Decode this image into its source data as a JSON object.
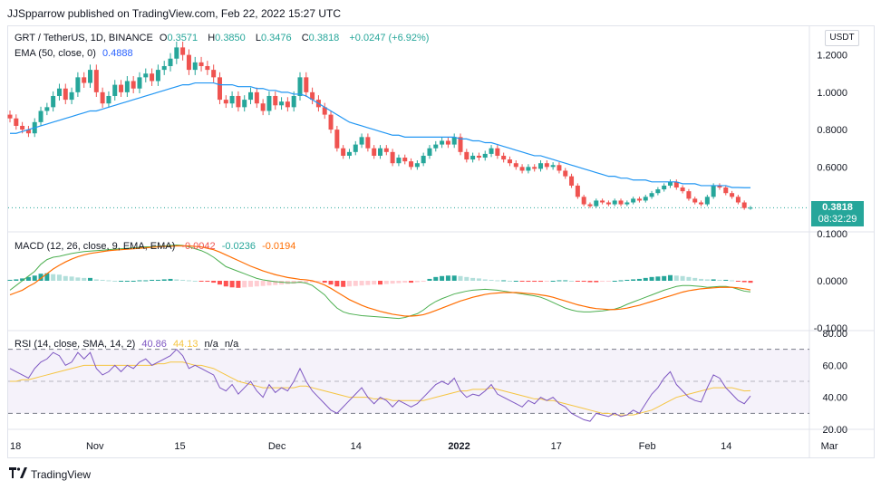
{
  "header": {
    "publisher_text": "JJSpparrow published on TradingView.com, Feb 22, 2022 15:27 UTC"
  },
  "legend": {
    "symbol": "GRT / TetherUS, 1D, BINANCE",
    "open_label": "O",
    "open": "0.3571",
    "high_label": "H",
    "high": "0.3850",
    "low_label": "L",
    "low": "0.3476",
    "close_label": "C",
    "close": "0.3818",
    "change": "+0.0247 (+6.92%)",
    "ema_label": "EMA (50, close, 0)",
    "ema_value": "0.4888",
    "macd_label": "MACD (12, 26, close, 9, EMA, EMA)",
    "macd_hist": "-0.0042",
    "macd_line": "-0.0236",
    "macd_signal": "-0.0194",
    "rsi_label": "RSI (14, close, SMA, 14, 2)",
    "rsi_value": "40.86",
    "rsi_ma": "44.13",
    "rsi_na1": "n/a",
    "rsi_na2": "n/a"
  },
  "currency": "USDT",
  "price_tag": {
    "price": "0.3818",
    "countdown": "08:32:29"
  },
  "logo_text": "TradingView",
  "colors": {
    "up": "#26a69a",
    "down": "#ef5350",
    "ema": "#2196f3",
    "macd": "#4caf50",
    "signal": "#ff6d00",
    "rsi": "#7e57c2",
    "rsi_ma": "#f5c542"
  },
  "chart_data": [
    {
      "type": "candlestick",
      "title": "GRT / TetherUS, 1D, BINANCE",
      "price_axis_ticks": [
        "1.2000",
        "1.0000",
        "0.8000",
        "0.6000"
      ],
      "x_ticks": [
        "18",
        "Nov",
        "15",
        "Dec",
        "14",
        "2022",
        "17",
        "Feb",
        "14",
        "Mar"
      ],
      "x_tick_days": [
        0,
        14,
        28,
        44,
        57,
        74,
        90,
        105,
        118,
        135
      ],
      "ylim": [
        0.33,
        1.3
      ],
      "series": [
        {
          "name": "EMA (50, close, 0)",
          "kind": "line"
        }
      ],
      "closes": [
        0.86,
        0.82,
        0.8,
        0.78,
        0.84,
        0.9,
        0.92,
        0.98,
        1.02,
        0.96,
        1.0,
        1.08,
        1.05,
        1.12,
        1.0,
        0.94,
        0.98,
        1.04,
        1.0,
        1.06,
        1.02,
        1.08,
        1.1,
        1.06,
        1.12,
        1.14,
        1.18,
        1.24,
        1.2,
        1.12,
        1.16,
        1.14,
        1.12,
        1.08,
        0.96,
        0.94,
        0.98,
        0.92,
        0.96,
        1.0,
        0.94,
        0.9,
        0.98,
        0.93,
        0.95,
        0.92,
        0.98,
        1.08,
        1.0,
        0.96,
        0.92,
        0.88,
        0.8,
        0.7,
        0.66,
        0.68,
        0.72,
        0.76,
        0.7,
        0.66,
        0.7,
        0.68,
        0.62,
        0.65,
        0.63,
        0.6,
        0.62,
        0.66,
        0.7,
        0.72,
        0.74,
        0.72,
        0.76,
        0.68,
        0.64,
        0.66,
        0.65,
        0.67,
        0.7,
        0.66,
        0.64,
        0.62,
        0.6,
        0.58,
        0.6,
        0.59,
        0.62,
        0.6,
        0.61,
        0.58,
        0.55,
        0.5,
        0.44,
        0.4,
        0.39,
        0.42,
        0.41,
        0.4,
        0.42,
        0.4,
        0.41,
        0.43,
        0.42,
        0.44,
        0.46,
        0.48,
        0.5,
        0.52,
        0.49,
        0.47,
        0.43,
        0.41,
        0.4,
        0.44,
        0.5,
        0.49,
        0.46,
        0.44,
        0.41,
        0.38,
        0.3818
      ],
      "ema": [
        0.78,
        0.78,
        0.79,
        0.8,
        0.81,
        0.82,
        0.83,
        0.84,
        0.85,
        0.86,
        0.87,
        0.88,
        0.89,
        0.9,
        0.9,
        0.91,
        0.92,
        0.93,
        0.94,
        0.95,
        0.96,
        0.97,
        0.98,
        0.99,
        1.0,
        1.01,
        1.02,
        1.03,
        1.04,
        1.04,
        1.05,
        1.05,
        1.05,
        1.05,
        1.04,
        1.04,
        1.04,
        1.03,
        1.03,
        1.03,
        1.02,
        1.02,
        1.01,
        1.01,
        1.0,
        1.0,
        0.99,
        0.99,
        0.98,
        0.96,
        0.94,
        0.92,
        0.9,
        0.88,
        0.86,
        0.84,
        0.83,
        0.82,
        0.81,
        0.8,
        0.79,
        0.78,
        0.77,
        0.77,
        0.76,
        0.76,
        0.76,
        0.76,
        0.76,
        0.76,
        0.76,
        0.76,
        0.76,
        0.75,
        0.75,
        0.74,
        0.74,
        0.73,
        0.73,
        0.72,
        0.71,
        0.7,
        0.69,
        0.68,
        0.67,
        0.66,
        0.66,
        0.65,
        0.64,
        0.63,
        0.62,
        0.61,
        0.6,
        0.59,
        0.58,
        0.57,
        0.56,
        0.55,
        0.55,
        0.54,
        0.54,
        0.53,
        0.53,
        0.53,
        0.52,
        0.52,
        0.52,
        0.52,
        0.52,
        0.51,
        0.51,
        0.51,
        0.5,
        0.5,
        0.5,
        0.5,
        0.5,
        0.49,
        0.49,
        0.489,
        0.4888
      ]
    },
    {
      "type": "bar",
      "title": "MACD (12, 26, close, 9, EMA, EMA)",
      "ylim": [
        -0.1,
        0.1
      ],
      "axis_ticks": [
        "0.1000",
        "0.0000",
        "-0.1000"
      ],
      "series": [
        {
          "name": "MACD"
        },
        {
          "name": "Signal"
        },
        {
          "name": "Histogram"
        }
      ],
      "hist": [
        0.002,
        0.003,
        0.005,
        0.008,
        0.011,
        0.015,
        0.016,
        0.014,
        0.013,
        0.01,
        0.009,
        0.007,
        0.006,
        0.006,
        0.003,
        0.002,
        0.001,
        0.0,
        0.0,
        0.0,
        0.0,
        0.001,
        0.001,
        0.002,
        0.002,
        0.003,
        0.004,
        0.003,
        0.002,
        0.001,
        0.0,
        -0.001,
        -0.002,
        -0.004,
        -0.008,
        -0.012,
        -0.014,
        -0.015,
        -0.014,
        -0.013,
        -0.012,
        -0.011,
        -0.01,
        -0.009,
        -0.008,
        -0.007,
        -0.006,
        -0.005,
        -0.004,
        -0.003,
        -0.002,
        -0.004,
        -0.008,
        -0.012,
        -0.013,
        -0.012,
        -0.011,
        -0.01,
        -0.009,
        -0.008,
        -0.008,
        -0.007,
        -0.006,
        -0.005,
        -0.004,
        -0.004,
        -0.003,
        -0.002,
        0.004,
        0.008,
        0.01,
        0.011,
        0.011,
        0.01,
        0.008,
        0.006,
        0.005,
        0.003,
        0.002,
        0.001,
        0.001,
        0.0,
        0.0,
        -0.001,
        -0.002,
        -0.002,
        -0.002,
        -0.001,
        0.0,
        0.001,
        0.001,
        0.0,
        -0.001,
        -0.002,
        -0.003,
        -0.003,
        -0.002,
        -0.001,
        0.0,
        0.001,
        0.002,
        0.003,
        0.004,
        0.006,
        0.008,
        0.009,
        0.01,
        0.012,
        0.011,
        0.01,
        0.008,
        0.006,
        0.004,
        0.003,
        0.003,
        0.002,
        0.002,
        0.001,
        -0.001,
        -0.003,
        -0.0042
      ],
      "macd": [
        -0.02,
        -0.01,
        0.0,
        0.01,
        0.02,
        0.035,
        0.045,
        0.05,
        0.052,
        0.055,
        0.058,
        0.06,
        0.062,
        0.063,
        0.064,
        0.065,
        0.066,
        0.067,
        0.068,
        0.069,
        0.07,
        0.071,
        0.072,
        0.072,
        0.073,
        0.074,
        0.075,
        0.076,
        0.075,
        0.072,
        0.068,
        0.064,
        0.058,
        0.05,
        0.04,
        0.03,
        0.025,
        0.02,
        0.015,
        0.01,
        0.005,
        0.002,
        0.0,
        -0.002,
        -0.003,
        -0.004,
        -0.004,
        -0.003,
        -0.005,
        -0.01,
        -0.02,
        -0.03,
        -0.045,
        -0.058,
        -0.066,
        -0.07,
        -0.072,
        -0.074,
        -0.075,
        -0.076,
        -0.077,
        -0.078,
        -0.079,
        -0.08,
        -0.078,
        -0.074,
        -0.07,
        -0.062,
        -0.052,
        -0.044,
        -0.038,
        -0.033,
        -0.028,
        -0.025,
        -0.022,
        -0.02,
        -0.019,
        -0.018,
        -0.019,
        -0.02,
        -0.022,
        -0.024,
        -0.026,
        -0.028,
        -0.03,
        -0.032,
        -0.035,
        -0.04,
        -0.046,
        -0.052,
        -0.058,
        -0.062,
        -0.065,
        -0.066,
        -0.066,
        -0.065,
        -0.064,
        -0.062,
        -0.06,
        -0.056,
        -0.05,
        -0.045,
        -0.04,
        -0.035,
        -0.03,
        -0.025,
        -0.02,
        -0.016,
        -0.012,
        -0.01,
        -0.01,
        -0.011,
        -0.012,
        -0.014,
        -0.013,
        -0.012,
        -0.012,
        -0.014,
        -0.018,
        -0.022,
        -0.0236
      ],
      "signal": [
        -0.03,
        -0.025,
        -0.02,
        -0.012,
        -0.005,
        0.005,
        0.015,
        0.025,
        0.033,
        0.04,
        0.046,
        0.051,
        0.055,
        0.058,
        0.06,
        0.062,
        0.064,
        0.065,
        0.066,
        0.067,
        0.068,
        0.069,
        0.07,
        0.071,
        0.072,
        0.073,
        0.073,
        0.074,
        0.074,
        0.074,
        0.073,
        0.072,
        0.069,
        0.066,
        0.061,
        0.055,
        0.049,
        0.043,
        0.037,
        0.031,
        0.026,
        0.021,
        0.017,
        0.013,
        0.01,
        0.007,
        0.005,
        0.003,
        0.002,
        0.0,
        -0.004,
        -0.009,
        -0.016,
        -0.024,
        -0.032,
        -0.04,
        -0.046,
        -0.052,
        -0.057,
        -0.061,
        -0.065,
        -0.068,
        -0.071,
        -0.073,
        -0.075,
        -0.075,
        -0.074,
        -0.072,
        -0.068,
        -0.063,
        -0.058,
        -0.053,
        -0.048,
        -0.043,
        -0.039,
        -0.035,
        -0.032,
        -0.029,
        -0.027,
        -0.026,
        -0.025,
        -0.025,
        -0.025,
        -0.026,
        -0.027,
        -0.028,
        -0.03,
        -0.032,
        -0.035,
        -0.039,
        -0.043,
        -0.047,
        -0.051,
        -0.054,
        -0.057,
        -0.059,
        -0.06,
        -0.061,
        -0.061,
        -0.06,
        -0.058,
        -0.055,
        -0.052,
        -0.048,
        -0.044,
        -0.04,
        -0.036,
        -0.032,
        -0.028,
        -0.024,
        -0.021,
        -0.019,
        -0.017,
        -0.016,
        -0.015,
        -0.014,
        -0.014,
        -0.014,
        -0.015,
        -0.017,
        -0.0194
      ]
    },
    {
      "type": "line",
      "title": "RSI (14, close, SMA, 14, 2)",
      "ylim": [
        20,
        80
      ],
      "axis_ticks": [
        "80.00",
        "60.00",
        "40.00",
        "20.00"
      ],
      "bands": [
        70,
        50,
        30
      ],
      "series": [
        {
          "name": "RSI"
        },
        {
          "name": "RSI-based MA"
        }
      ],
      "rsi": [
        58,
        56,
        54,
        52,
        58,
        62,
        64,
        68,
        66,
        60,
        62,
        68,
        64,
        68,
        58,
        54,
        56,
        60,
        56,
        60,
        58,
        62,
        64,
        60,
        62,
        64,
        66,
        70,
        66,
        58,
        60,
        58,
        56,
        54,
        46,
        44,
        48,
        42,
        46,
        50,
        44,
        40,
        48,
        43,
        46,
        44,
        50,
        58,
        50,
        44,
        40,
        36,
        32,
        30,
        34,
        38,
        42,
        46,
        40,
        36,
        40,
        38,
        34,
        38,
        36,
        34,
        36,
        40,
        44,
        48,
        50,
        48,
        52,
        44,
        40,
        42,
        41,
        44,
        48,
        42,
        40,
        38,
        36,
        34,
        38,
        36,
        40,
        38,
        40,
        36,
        34,
        30,
        28,
        26,
        25,
        30,
        29,
        28,
        30,
        28,
        29,
        32,
        30,
        36,
        42,
        46,
        52,
        56,
        48,
        44,
        40,
        38,
        37,
        46,
        54,
        52,
        46,
        42,
        38,
        36,
        40.86
      ],
      "rsi_ma": [
        50,
        50,
        51,
        51,
        52,
        53,
        54,
        55,
        56,
        57,
        58,
        59,
        60,
        60,
        60,
        60,
        60,
        60,
        60,
        60,
        60,
        60,
        60,
        60,
        61,
        61,
        62,
        62,
        62,
        61,
        60,
        60,
        59,
        58,
        56,
        54,
        52,
        50,
        49,
        48,
        47,
        46,
        46,
        46,
        46,
        46,
        46,
        47,
        47,
        46,
        45,
        44,
        43,
        42,
        41,
        40,
        40,
        40,
        40,
        39,
        39,
        39,
        38,
        38,
        38,
        38,
        38,
        38,
        39,
        40,
        41,
        42,
        43,
        44,
        44,
        45,
        45,
        45,
        46,
        45,
        44,
        43,
        42,
        41,
        40,
        39,
        39,
        38,
        38,
        37,
        36,
        35,
        34,
        33,
        32,
        31,
        30,
        30,
        29,
        29,
        29,
        29,
        30,
        31,
        32,
        34,
        36,
        38,
        40,
        41,
        42,
        43,
        44,
        45,
        46,
        46,
        46,
        46,
        45,
        44,
        44.13
      ]
    }
  ]
}
